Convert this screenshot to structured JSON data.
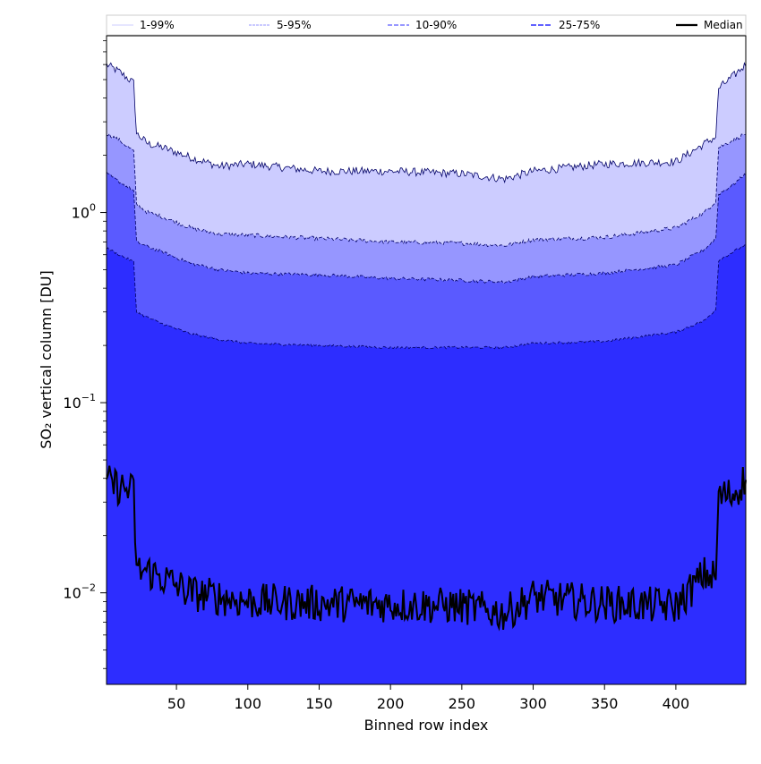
{
  "chart_data": {
    "type": "area",
    "xlabel": "Binned row index",
    "ylabel": "SO₂ vertical column [DU]",
    "xlim": [
      1,
      449
    ],
    "ylim": [
      0.0033,
      8.5
    ],
    "yscale": "log",
    "grid": false,
    "legend_placement": "top (single row)",
    "x_ticks": [
      50,
      100,
      150,
      200,
      250,
      300,
      350,
      400
    ],
    "y_ticks": [
      {
        "value": 1,
        "base": "10",
        "exp": "0"
      },
      {
        "value": 0.1,
        "base": "10",
        "exp": "−1"
      },
      {
        "value": 0.01,
        "base": "10",
        "exp": "−2"
      }
    ],
    "x": [
      1,
      10,
      20,
      22,
      30,
      40,
      60,
      80,
      100,
      150,
      200,
      250,
      280,
      300,
      350,
      400,
      420,
      428,
      430,
      440,
      449
    ],
    "series": [
      {
        "name": "1-99%",
        "key": "p1_99",
        "lower": [
          0.0033,
          0.0033,
          0.0033,
          0.0033,
          0.0033,
          0.0033,
          0.0033,
          0.0033,
          0.0033,
          0.0033,
          0.0033,
          0.0033,
          0.0033,
          0.0033,
          0.0033,
          0.0033,
          0.0033,
          0.0033,
          0.0033,
          0.0033,
          0.0033
        ],
        "upper": [
          6.0,
          5.5,
          4.8,
          2.6,
          2.3,
          2.2,
          1.95,
          1.75,
          1.8,
          1.65,
          1.65,
          1.6,
          1.5,
          1.65,
          1.8,
          1.85,
          2.3,
          2.5,
          4.5,
          5.2,
          6.0
        ]
      },
      {
        "name": "5-95%",
        "key": "p5_95",
        "lower": [
          0.0033,
          0.0033,
          0.0033,
          0.0033,
          0.0033,
          0.0033,
          0.0033,
          0.0033,
          0.0033,
          0.0033,
          0.0033,
          0.0033,
          0.0033,
          0.0033,
          0.0033,
          0.0033,
          0.0033,
          0.0033,
          0.0033,
          0.0033,
          0.0033
        ],
        "upper": [
          2.6,
          2.4,
          2.1,
          1.1,
          1.0,
          0.95,
          0.83,
          0.77,
          0.76,
          0.73,
          0.7,
          0.69,
          0.67,
          0.72,
          0.74,
          0.83,
          1.0,
          1.15,
          2.2,
          2.4,
          2.6
        ]
      },
      {
        "name": "10-90%",
        "key": "p10_90",
        "lower": [
          0.0033,
          0.0033,
          0.0033,
          0.0033,
          0.0033,
          0.0033,
          0.0033,
          0.0033,
          0.0033,
          0.0033,
          0.0033,
          0.0033,
          0.0033,
          0.0033,
          0.0033,
          0.0033,
          0.0033,
          0.0033,
          0.0033,
          0.0033,
          0.0033
        ],
        "upper": [
          1.6,
          1.45,
          1.3,
          0.7,
          0.66,
          0.62,
          0.54,
          0.5,
          0.48,
          0.47,
          0.45,
          0.44,
          0.43,
          0.46,
          0.48,
          0.53,
          0.64,
          0.73,
          1.25,
          1.4,
          1.6
        ]
      },
      {
        "name": "25-75%",
        "key": "p25_75",
        "lower": [
          0.0033,
          0.0033,
          0.0033,
          0.0033,
          0.0033,
          0.0033,
          0.0033,
          0.0033,
          0.0033,
          0.0033,
          0.0033,
          0.0033,
          0.0033,
          0.0033,
          0.0033,
          0.0033,
          0.0033,
          0.0033,
          0.0033,
          0.0033,
          0.0033
        ],
        "upper": [
          0.65,
          0.6,
          0.55,
          0.3,
          0.28,
          0.26,
          0.23,
          0.215,
          0.205,
          0.2,
          0.195,
          0.195,
          0.195,
          0.205,
          0.21,
          0.235,
          0.27,
          0.31,
          0.56,
          0.62,
          0.68
        ]
      },
      {
        "name": "Median",
        "key": "median",
        "values": [
          0.038,
          0.036,
          0.034,
          0.013,
          0.013,
          0.012,
          0.01,
          0.0095,
          0.009,
          0.0088,
          0.0087,
          0.0085,
          0.0078,
          0.0095,
          0.0088,
          0.0085,
          0.0125,
          0.012,
          0.032,
          0.033,
          0.04
        ]
      }
    ],
    "colors": {
      "p1_99": "#ccccff",
      "p5_95": "#9696ff",
      "p10_90": "#5a5aff",
      "p25_75": "#2d2dff",
      "median": "#000000",
      "edge": "#000066"
    }
  }
}
